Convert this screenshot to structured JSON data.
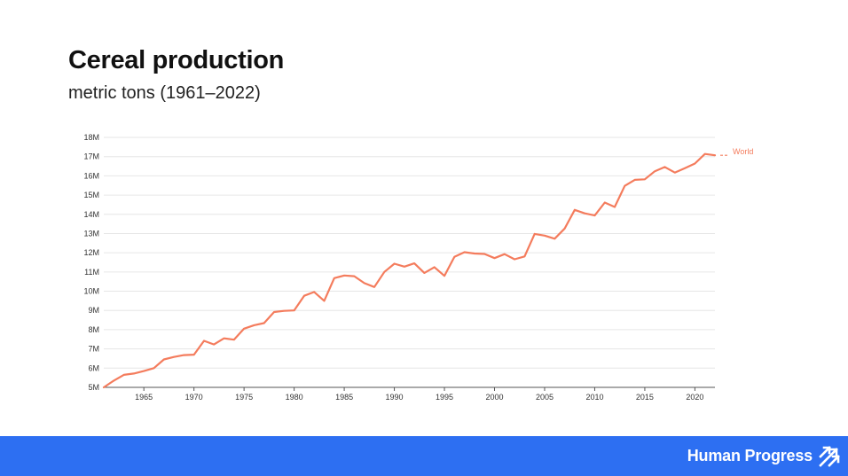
{
  "header": {
    "title": "Cereal production",
    "subtitle": "metric tons (1961–2022)"
  },
  "footer": {
    "brand": "Human Progress",
    "brand_icon": "diagonal-arrows-icon",
    "background_color": "#2d6ff2"
  },
  "chart_data": {
    "type": "line",
    "title": "Cereal production",
    "subtitle": "metric tons (1961–2022)",
    "xlabel": "",
    "ylabel": "",
    "xlim": [
      1961,
      2022
    ],
    "ylim": [
      5000000,
      18000000
    ],
    "yticks": [
      5000000,
      6000000,
      7000000,
      8000000,
      9000000,
      10000000,
      11000000,
      12000000,
      13000000,
      14000000,
      15000000,
      16000000,
      17000000,
      18000000
    ],
    "ytick_labels": [
      "5M",
      "6M",
      "7M",
      "8M",
      "9M",
      "10M",
      "11M",
      "12M",
      "13M",
      "14M",
      "15M",
      "16M",
      "17M",
      "18M"
    ],
    "xticks": [
      1965,
      1970,
      1975,
      1980,
      1985,
      1990,
      1995,
      2000,
      2005,
      2010,
      2015,
      2020
    ],
    "xtick_labels": [
      "1965",
      "1970",
      "1975",
      "1980",
      "1985",
      "1990",
      "1995",
      "2000",
      "2005",
      "2010",
      "2015",
      "2020"
    ],
    "grid": true,
    "legend": "end-of-line label",
    "series": [
      {
        "name": "World",
        "color": "#f47c5d",
        "x": [
          1961,
          1962,
          1963,
          1964,
          1965,
          1966,
          1967,
          1968,
          1969,
          1970,
          1971,
          1972,
          1973,
          1974,
          1975,
          1976,
          1977,
          1978,
          1979,
          1980,
          1981,
          1982,
          1983,
          1984,
          1985,
          1986,
          1987,
          1988,
          1989,
          1990,
          1991,
          1992,
          1993,
          1994,
          1995,
          1996,
          1997,
          1998,
          1999,
          2000,
          2001,
          2002,
          2003,
          2004,
          2005,
          2006,
          2007,
          2008,
          2009,
          2010,
          2011,
          2012,
          2013,
          2014,
          2015,
          2016,
          2017,
          2018,
          2019,
          2020,
          2021,
          2022
        ],
        "values": [
          5000000,
          5350000,
          5650000,
          5720000,
          5850000,
          6000000,
          6450000,
          6580000,
          6680000,
          6700000,
          7420000,
          7230000,
          7550000,
          7480000,
          8050000,
          8230000,
          8340000,
          8920000,
          8980000,
          9000000,
          9760000,
          9960000,
          9500000,
          10680000,
          10820000,
          10780000,
          10420000,
          10220000,
          11000000,
          11430000,
          11280000,
          11450000,
          10950000,
          11250000,
          10800000,
          11790000,
          12030000,
          11960000,
          11940000,
          11720000,
          11930000,
          11660000,
          11810000,
          12980000,
          12890000,
          12730000,
          13260000,
          14230000,
          14050000,
          13940000,
          14610000,
          14380000,
          15480000,
          15790000,
          15820000,
          16240000,
          16460000,
          16170000,
          16400000,
          16640000,
          17140000,
          17070000
        ]
      }
    ]
  }
}
